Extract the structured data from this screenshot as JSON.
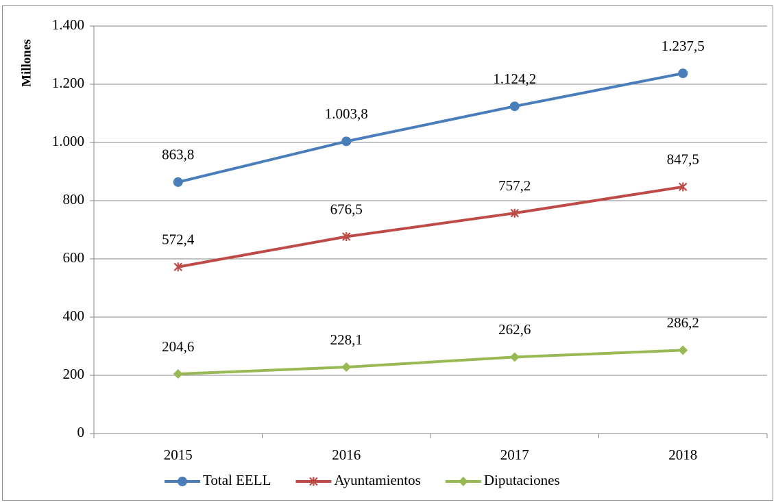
{
  "chart_data": {
    "type": "line",
    "y_label": "Millones",
    "categories": [
      "2015",
      "2016",
      "2017",
      "2018"
    ],
    "series": [
      {
        "name": "Total EELL",
        "color": "#4a7ebb",
        "marker": "circle",
        "values": [
          863.8,
          1003.8,
          1124.2,
          1237.5
        ],
        "value_labels": [
          "863,8",
          "1.003,8",
          "1.124,2",
          "1.237,5"
        ]
      },
      {
        "name": "Ayuntamientos",
        "color": "#be4b48",
        "marker": "star",
        "values": [
          572.4,
          676.5,
          757.2,
          847.5
        ],
        "value_labels": [
          "572,4",
          "676,5",
          "757,2",
          "847,5"
        ]
      },
      {
        "name": "Diputaciones",
        "color": "#98b954",
        "marker": "diamond",
        "values": [
          204.6,
          228.1,
          262.6,
          286.2
        ],
        "value_labels": [
          "204,6",
          "228,1",
          "262,6",
          "286,2"
        ]
      }
    ],
    "ylim": [
      0,
      1400
    ],
    "yticks": [
      0,
      200,
      400,
      600,
      800,
      {
        "value": 1000,
        "label": "1.000"
      },
      {
        "value": 1200,
        "label": "1.200"
      },
      {
        "value": 1400,
        "label": "1.400"
      }
    ],
    "grid": true,
    "legend": "bottom"
  }
}
